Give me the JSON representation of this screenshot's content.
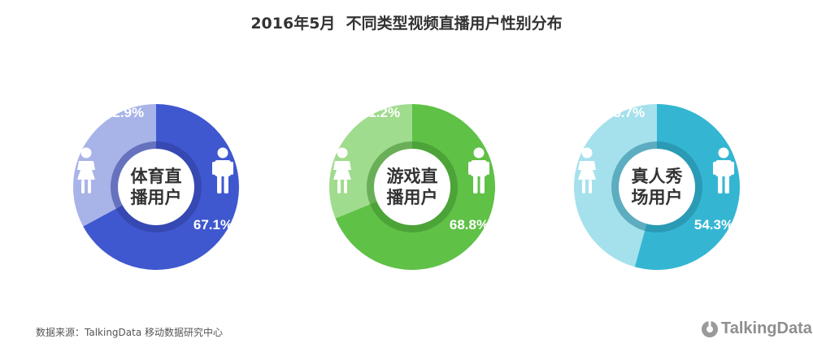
{
  "title": "2016年5月  不同类型视频直播用户性别分布",
  "source": "数据来源：TalkingData 移动数据研究中心",
  "logo_text": "TalkingData",
  "chart_data": [
    {
      "type": "pie",
      "center_label": [
        "体育直",
        "播用户"
      ],
      "slices": [
        {
          "label": "female",
          "value": 32.9,
          "display": "32.9%",
          "color": "#a8b4e8"
        },
        {
          "label": "male",
          "value": 67.1,
          "display": "67.1%",
          "color": "#3f57cf"
        }
      ],
      "ring_color": "#2f3d99"
    },
    {
      "type": "pie",
      "center_label": [
        "游戏直",
        "播用户"
      ],
      "slices": [
        {
          "label": "female",
          "value": 31.2,
          "display": "31.2%",
          "color": "#9fdc8d"
        },
        {
          "label": "male",
          "value": 68.8,
          "display": "68.8%",
          "color": "#5fc146"
        }
      ],
      "ring_color": "#3d8a2d"
    },
    {
      "type": "pie",
      "center_label": [
        "真人秀",
        "场用户"
      ],
      "slices": [
        {
          "label": "female",
          "value": 45.7,
          "display": "45.7%",
          "color": "#a5e1ec"
        },
        {
          "label": "male",
          "value": 54.3,
          "display": "54.3%",
          "color": "#34b6d3"
        }
      ],
      "ring_color": "#23849c"
    }
  ]
}
